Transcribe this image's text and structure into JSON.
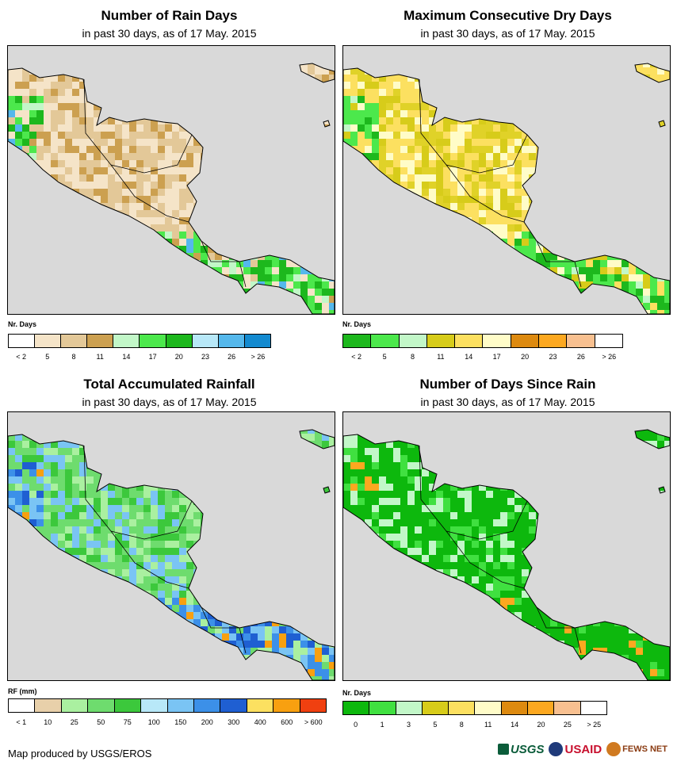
{
  "panels": [
    {
      "title": "Number of Rain Days",
      "subtitle": "in past 30 days, as of 17 May. 2015",
      "legend_title": "Nr. Days",
      "legend_colors": [
        "#ffffff",
        "#f5e4c8",
        "#e3c898",
        "#cca050",
        "#c2f7c8",
        "#4ce84c",
        "#1db81d",
        "#b8e8f8",
        "#55b8ec",
        "#138ad0"
      ],
      "legend_labels": [
        "< 2",
        "5",
        "8",
        "11",
        "14",
        "17",
        "20",
        "23",
        "26",
        "> 26"
      ],
      "land_palette": [
        "#e3c898",
        "#f5e4c8",
        "#cca050",
        "#e3c898",
        "#f5e4c8"
      ],
      "wet_palette": [
        "#4ce84c",
        "#1db81d",
        "#c2f7c8",
        "#55b8ec",
        "#4ce84c"
      ]
    },
    {
      "title": "Maximum Consecutive Dry Days",
      "subtitle": "in past 30 days, as of 17 May. 2015",
      "legend_title": "Nr. Days",
      "legend_colors": [
        "#1db81d",
        "#4ce84c",
        "#c2f7c8",
        "#d7cc1a",
        "#fce060",
        "#fffcc8",
        "#dd8a10",
        "#fca820",
        "#f8c090",
        "#ffffff"
      ],
      "legend_labels": [
        "< 2",
        "5",
        "8",
        "11",
        "14",
        "17",
        "20",
        "23",
        "26",
        "> 26"
      ],
      "land_palette": [
        "#e0d228",
        "#fce060",
        "#d7cc1a",
        "#fffcc8",
        "#fce060"
      ],
      "wet_palette": [
        "#4ce84c",
        "#1db81d",
        "#c2f7c8",
        "#4ce84c",
        "#4ce84c"
      ]
    },
    {
      "title": "Total Accumulated Rainfall",
      "subtitle": "in past 30 days, as of 17 May. 2015",
      "legend_title": "RF (mm)",
      "legend_colors": [
        "#ffffff",
        "#e8d0aa",
        "#aaf0a0",
        "#6edc6e",
        "#3cc83c",
        "#b8e8f8",
        "#7ac4f4",
        "#3c90e8",
        "#1f5fd2",
        "#fce060",
        "#f8a010",
        "#f04010"
      ],
      "legend_labels": [
        "< 1",
        "10",
        "25",
        "50",
        "75",
        "100",
        "150",
        "200",
        "300",
        "400",
        "600",
        "> 600"
      ],
      "land_palette": [
        "#6edc6e",
        "#3cc83c",
        "#aaf0a0",
        "#7ac4f4",
        "#6edc6e"
      ],
      "wet_palette": [
        "#3c90e8",
        "#1f5fd2",
        "#7ac4f4",
        "#f8a010",
        "#3c90e8"
      ]
    },
    {
      "title": "Number of Days Since Rain",
      "subtitle": "in past 30 days, as of 17 May. 2015",
      "legend_title": "Nr. Days",
      "legend_colors": [
        "#0db80d",
        "#40e040",
        "#c2f7c8",
        "#d7cc1a",
        "#fce060",
        "#fffcc8",
        "#dd8a10",
        "#fca820",
        "#f8c090",
        "#ffffff"
      ],
      "legend_labels": [
        "0",
        "1",
        "3",
        "5",
        "8",
        "11",
        "14",
        "20",
        "25",
        "> 25"
      ],
      "land_palette": [
        "#0db80d",
        "#0db80d",
        "#c2f7c8",
        "#40e040",
        "#0db80d"
      ],
      "wet_palette": [
        "#0db80d",
        "#0db80d",
        "#0db80d",
        "#fca820",
        "#0db80d"
      ]
    }
  ],
  "footer": "Map produced by USGS/EROS",
  "logos": [
    "USGS",
    "USAID",
    "FEWS NET"
  ],
  "colors": {
    "background": "#d9d9d9",
    "border": "#000000"
  }
}
